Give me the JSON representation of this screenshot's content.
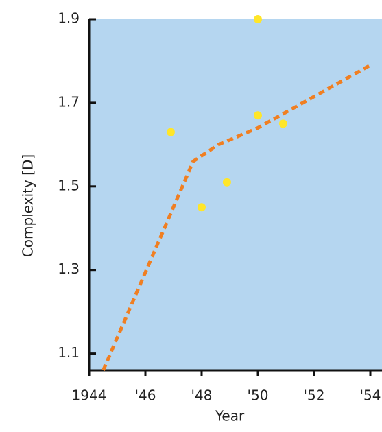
{
  "chart_data": {
    "type": "scatter",
    "x_label": "Year",
    "y_label": "Complexity [D]",
    "xlim": [
      1944,
      1954
    ],
    "ylim": [
      1.06,
      1.9
    ],
    "xticks": [
      1944,
      {
        "value": 1946,
        "label": "'46"
      },
      {
        "value": 1948,
        "label": "'48"
      },
      {
        "value": 1950,
        "label": "'50"
      },
      {
        "value": 1952,
        "label": "'52"
      },
      {
        "value": 1954,
        "label": "'54"
      }
    ],
    "yticks": [
      1.1,
      1.3,
      1.5,
      1.7,
      1.9
    ],
    "background": "#b5d6f0",
    "series": [
      {
        "style": "points",
        "color": "#ffe629",
        "x": [
          1946.9,
          1948,
          1948.9,
          1950,
          1950,
          1950.9
        ],
        "values": [
          1.63,
          1.45,
          1.51,
          1.9,
          1.67,
          1.65
        ]
      },
      {
        "style": "dashed",
        "color": "#f07f22",
        "x": [
          1944.5,
          1947.7,
          1948.6,
          1950,
          1954
        ],
        "values": [
          1.06,
          1.56,
          1.6,
          1.64,
          1.79
        ]
      }
    ]
  }
}
